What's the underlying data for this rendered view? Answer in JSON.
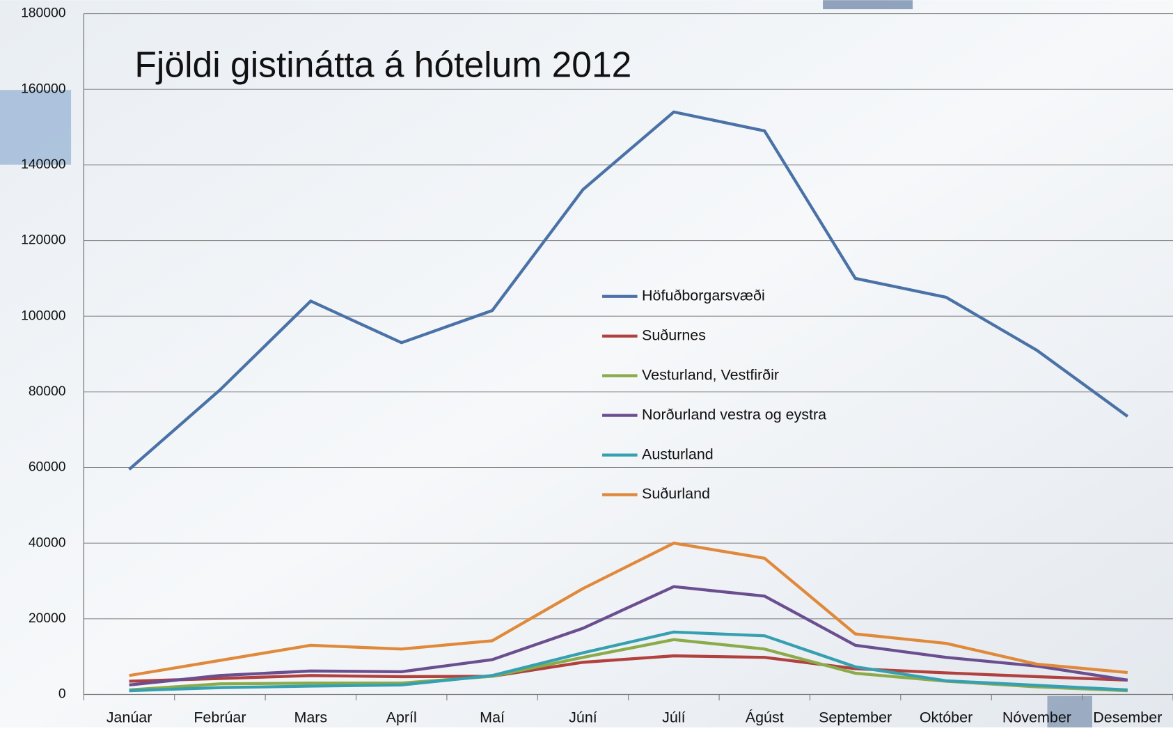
{
  "chart_data": {
    "type": "line",
    "title": "Fjöldi gistinátta á hótelum 2012",
    "categories": [
      "Janúar",
      "Febrúar",
      "Mars",
      "Apríl",
      "Maí",
      "Júní",
      "Júlí",
      "Ágúst",
      "September",
      "Október",
      "Nóvember",
      "Desember"
    ],
    "series": [
      {
        "name": "Höfuðborgarsvæði",
        "color": "#4a72a6",
        "values": [
          59500,
          80500,
          104000,
          93000,
          101500,
          133500,
          154000,
          149000,
          110000,
          105000,
          91000,
          73500
        ]
      },
      {
        "name": "Suðurnes",
        "color": "#b0413e",
        "values": [
          3500,
          4200,
          5000,
          4700,
          4800,
          8500,
          10200,
          9800,
          6800,
          5700,
          4700,
          3800
        ]
      },
      {
        "name": "Vesturland, Vestfirðir",
        "color": "#8bab4a",
        "values": [
          1200,
          2800,
          3000,
          3000,
          4800,
          9800,
          14500,
          12000,
          5600,
          3500,
          2000,
          1000
        ]
      },
      {
        "name": "Norðurland vestra og eystra",
        "color": "#6b4e8f",
        "values": [
          2500,
          5000,
          6200,
          6000,
          9200,
          17500,
          28500,
          26000,
          13000,
          9800,
          7500,
          3800
        ]
      },
      {
        "name": "Austurland",
        "color": "#36a0b0",
        "values": [
          1000,
          1800,
          2200,
          2500,
          5000,
          11000,
          16500,
          15500,
          7300,
          3600,
          2400,
          1200
        ]
      },
      {
        "name": "Suðurland",
        "color": "#e0893b",
        "values": [
          5000,
          9000,
          13000,
          12000,
          14200,
          28000,
          40000,
          36000,
          16000,
          13500,
          8000,
          5800
        ]
      }
    ],
    "ylim": [
      0,
      180000
    ],
    "yticks": [
      0,
      20000,
      40000,
      60000,
      80000,
      100000,
      120000,
      140000,
      160000,
      180000
    ],
    "grid": true
  }
}
